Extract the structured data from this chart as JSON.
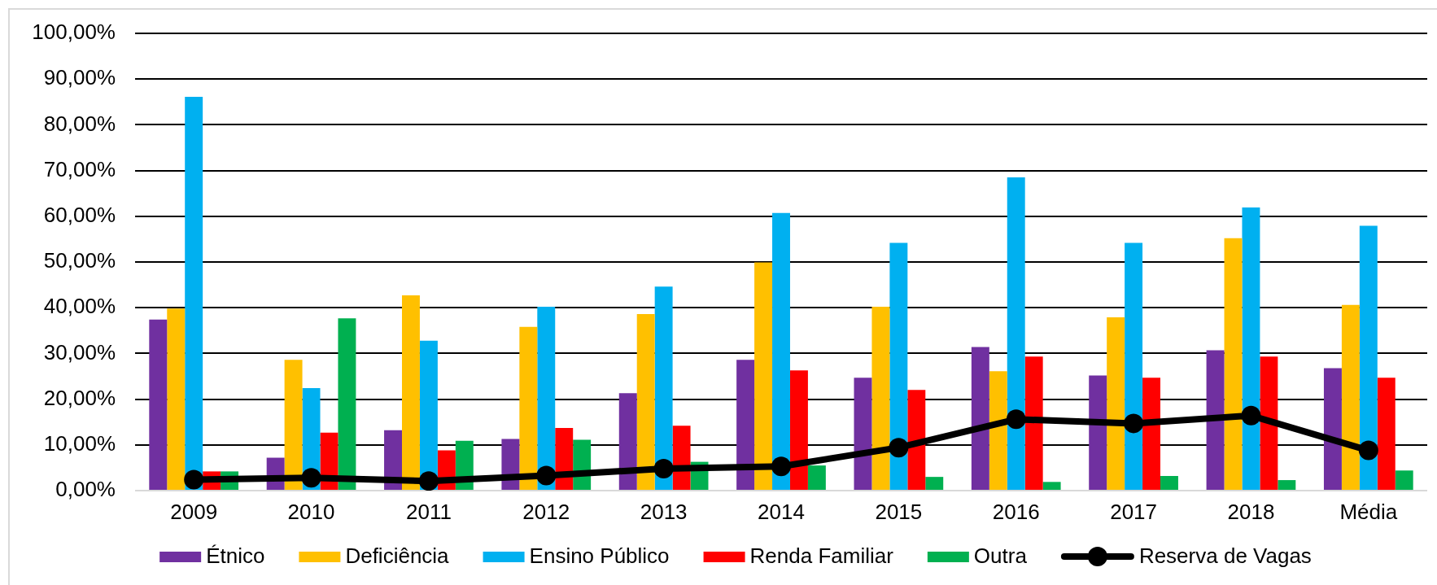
{
  "chart_data": {
    "type": "bar",
    "categories": [
      "2009",
      "2010",
      "2011",
      "2012",
      "2013",
      "2014",
      "2015",
      "2016",
      "2017",
      "2018",
      "Média"
    ],
    "series": [
      {
        "name": "Étnico",
        "color": "#7030a0",
        "values": [
          37.4,
          7.2,
          13.2,
          11.3,
          21.3,
          28.6,
          24.7,
          31.4,
          25.2,
          30.7,
          26.8
        ]
      },
      {
        "name": "Deficiência",
        "color": "#ffc000",
        "values": [
          39.8,
          28.6,
          42.7,
          35.8,
          38.6,
          49.9,
          40.2,
          26.1,
          37.9,
          55.2,
          40.6
        ]
      },
      {
        "name": "Ensino Público",
        "color": "#00b0f0",
        "values": [
          86.1,
          22.4,
          32.8,
          40.2,
          44.6,
          60.7,
          54.2,
          68.5,
          54.2,
          61.9,
          57.9
        ]
      },
      {
        "name": "Renda Familiar",
        "color": "#ff0000",
        "values": [
          4.2,
          12.7,
          8.8,
          13.7,
          14.2,
          26.3,
          22.0,
          29.3,
          24.7,
          29.3,
          24.7
        ]
      },
      {
        "name": "Outra",
        "color": "#00b050",
        "values": [
          4.2,
          37.7,
          10.9,
          11.1,
          6.3,
          5.5,
          3.0,
          1.9,
          3.2,
          2.3,
          4.4
        ]
      },
      {
        "name": "Reserva de Vagas",
        "type": "line",
        "color": "#000000",
        "values": [
          2.4,
          2.8,
          2.1,
          3.3,
          4.8,
          5.3,
          9.4,
          15.6,
          14.7,
          16.4,
          8.8
        ]
      }
    ],
    "ylim": [
      0,
      100
    ],
    "yticks": [
      {
        "value": 0,
        "label": "0,00%"
      },
      {
        "value": 10,
        "label": "10,00%"
      },
      {
        "value": 20,
        "label": "20,00%"
      },
      {
        "value": 30,
        "label": "30,00%"
      },
      {
        "value": 40,
        "label": "40,00%"
      },
      {
        "value": 50,
        "label": "50,00%"
      },
      {
        "value": 60,
        "label": "60,00%"
      },
      {
        "value": 70,
        "label": "70,00%"
      },
      {
        "value": 80,
        "label": "80,00%"
      },
      {
        "value": 90,
        "label": "90,00%"
      },
      {
        "value": 100,
        "label": "100,00%"
      }
    ],
    "grid": "y",
    "legend": "bottom",
    "marker": "circle"
  }
}
